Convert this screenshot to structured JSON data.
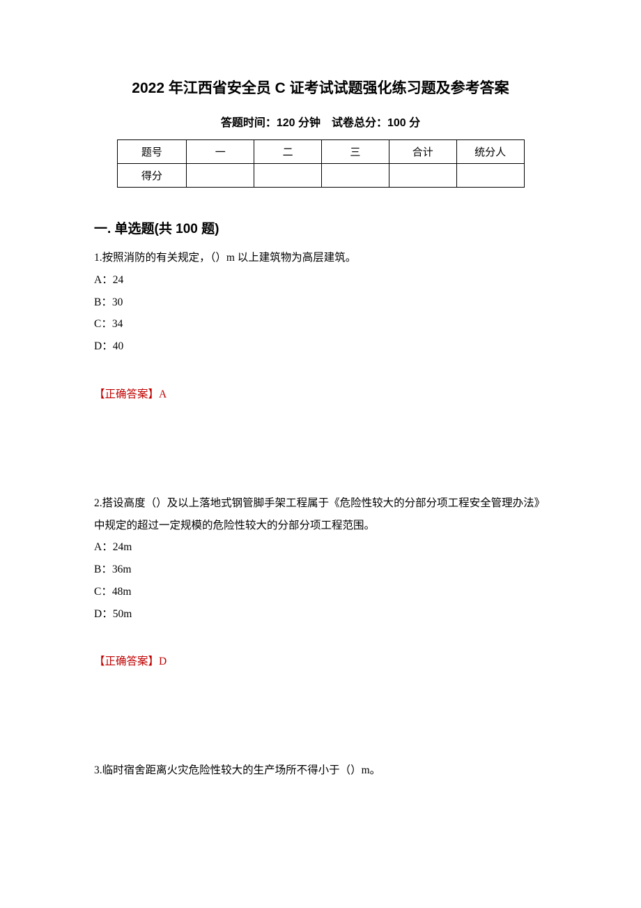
{
  "title": "2022 年江西省安全员 C 证考试试题强化练习题及参考答案",
  "info_line": "答题时间：120 分钟　试卷总分：100 分",
  "score_table": {
    "headers": [
      "题号",
      "一",
      "二",
      "三",
      "合计",
      "统分人"
    ],
    "row_label": "得分",
    "col_widths": [
      "100px",
      "97px",
      "97px",
      "97px",
      "97px",
      "97px"
    ]
  },
  "section_heading": "一. 单选题(共 100 题)",
  "questions": [
    {
      "num": "1.",
      "text": "按照消防的有关规定，（）m 以上建筑物为高层建筑。",
      "options": [
        {
          "label": "A：",
          "value": "24"
        },
        {
          "label": "B：",
          "value": "30"
        },
        {
          "label": "C：",
          "value": "34"
        },
        {
          "label": "D：",
          "value": "40"
        }
      ],
      "answer_label": "【正确答案】",
      "answer": "A"
    },
    {
      "num": "2.",
      "text": "搭设高度（）及以上落地式钢管脚手架工程属于《危险性较大的分部分项工程安全管理办法》中规定的超过一定规模的危险性较大的分部分项工程范围。",
      "options": [
        {
          "label": "A：",
          "value": "24m"
        },
        {
          "label": "B：",
          "value": "36m"
        },
        {
          "label": "C：",
          "value": "48m"
        },
        {
          "label": "D：",
          "value": "50m"
        }
      ],
      "answer_label": "【正确答案】",
      "answer": "D"
    },
    {
      "num": "3.",
      "text": "临时宿舍距离火灾危险性较大的生产场所不得小于（）m。",
      "options": [],
      "answer_label": "",
      "answer": ""
    }
  ],
  "colors": {
    "text": "#000000",
    "answer": "#c00000",
    "background": "#ffffff",
    "table_border": "#000000"
  },
  "typography": {
    "title_fontsize": 21,
    "info_fontsize": 16,
    "section_fontsize": 19,
    "body_fontsize": 15.5,
    "line_height": 2.05
  }
}
